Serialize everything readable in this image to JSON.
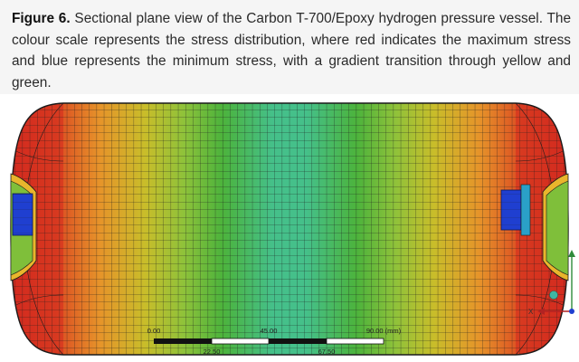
{
  "caption": {
    "label": "Figure 6.",
    "text": " Sectional plane view of the Carbon T-700/Epoxy hydrogen pressure vessel. The colour scale represents the stress distribution, where red indicates the maximum stress and blue represents the minimum stress, with a gradient transition through yellow and green."
  },
  "scale_bar": {
    "top_labels": [
      "0.00",
      "45.00",
      "90.00 (mm)"
    ],
    "bottom_labels": [
      "22.50",
      "67.50"
    ]
  },
  "triad": {
    "x_label": "X"
  },
  "colors": {
    "max_stress": "#d8281e",
    "mid_high": "#e8a025",
    "mid": "#c9c22a",
    "mid_low": "#3fae3c",
    "low": "#45c08e",
    "min_stress": "#1f3fd0"
  }
}
